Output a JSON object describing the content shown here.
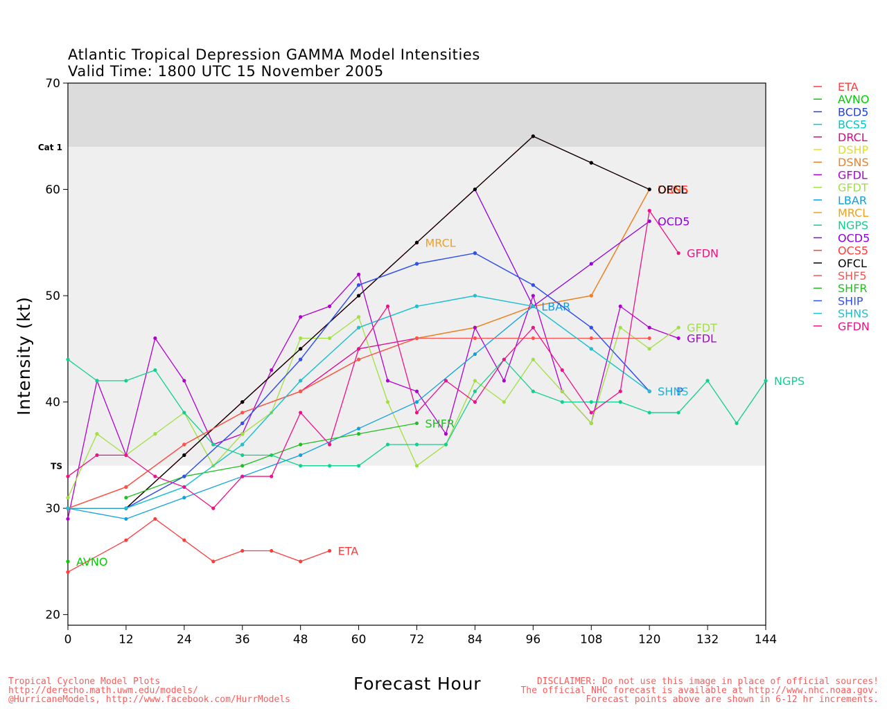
{
  "title_line1": "Atlantic Tropical Depression GAMMA Model Intensities",
  "title_line2": "Valid Time: 1800 UTC 15 November 2005",
  "footer_left": [
    "Tropical Cyclone Model Plots",
    "http://derecho.math.uwm.edu/models/",
    "@HurricaneModels, http://www.facebook.com/HurrModels"
  ],
  "footer_right": [
    "DISCLAIMER: Do not use this image in place of official sources!",
    "The official NHC forecast is available at http://www.nhc.noaa.gov.",
    "Forecast points above are shown in 6-12 hr increments."
  ],
  "chart_data": {
    "type": "line",
    "title": "Atlantic Tropical Depression GAMMA Model Intensities",
    "subtitle": "Valid Time: 1800 UTC 15 November 2005",
    "xlabel": "Forecast Hour",
    "ylabel": "Intensity (kt)",
    "xlim": [
      0,
      144
    ],
    "ylim": [
      19,
      70
    ],
    "xticks": [
      0,
      12,
      24,
      36,
      48,
      60,
      72,
      84,
      96,
      108,
      120,
      132,
      144
    ],
    "yticks": [
      20,
      30,
      40,
      50,
      60,
      70
    ],
    "bands": [
      {
        "label": "TS",
        "from": 34,
        "to": 64,
        "color": "#efefef"
      },
      {
        "label": "Cat 1",
        "from": 64,
        "to": 70,
        "color": "#dcdcdc"
      }
    ],
    "legend_position": "right",
    "series": [
      {
        "name": "ETA",
        "color": "#ff3c3c",
        "x": [
          0,
          12,
          18,
          24,
          30,
          36,
          42,
          48,
          54
        ],
        "y": [
          24,
          27,
          29,
          27,
          25,
          26,
          26,
          25,
          26
        ],
        "end_label": true
      },
      {
        "name": "AVNO",
        "color": "#00d000",
        "x": [
          0
        ],
        "y": [
          25
        ],
        "end_label": true
      },
      {
        "name": "BCD5",
        "color": "#2040e0",
        "x": [
          0,
          12,
          24,
          36,
          48,
          60,
          72,
          84,
          96,
          108,
          120
        ],
        "y": [
          30,
          30,
          33,
          38,
          44,
          51,
          53,
          54,
          51,
          47,
          41
        ],
        "end_label": false
      },
      {
        "name": "BCS5",
        "color": "#00c8c8",
        "x": [
          0,
          12,
          24,
          36,
          48,
          60,
          72,
          84,
          96,
          108,
          120
        ],
        "y": [
          30,
          30,
          32,
          36,
          42,
          47,
          49,
          50,
          49,
          45,
          41
        ],
        "end_label": false
      },
      {
        "name": "DRCL",
        "color": "#e00090",
        "x": [
          0,
          12,
          24,
          36,
          48,
          60,
          72,
          84,
          96,
          108,
          120
        ],
        "y": [
          30,
          32,
          36,
          39,
          41,
          45,
          46,
          47,
          49,
          50,
          60
        ],
        "end_label": true
      },
      {
        "name": "DSHP",
        "color": "#e0e020",
        "x": [
          0,
          12,
          24,
          36,
          48,
          60,
          72,
          84,
          96,
          108,
          120
        ],
        "y": [
          30,
          32,
          36,
          39,
          41,
          44,
          46,
          47,
          49,
          50,
          60
        ],
        "end_label": false
      },
      {
        "name": "DSNS",
        "color": "#f08020",
        "x": [
          0,
          12,
          24,
          36,
          48,
          60,
          72,
          84,
          96,
          108,
          120
        ],
        "y": [
          30,
          32,
          36,
          39,
          41,
          44,
          46,
          47,
          49,
          50,
          60
        ],
        "end_label": true
      },
      {
        "name": "GFDL",
        "color": "#b000d0",
        "x": [
          0,
          6,
          12,
          18,
          24,
          30,
          36,
          42,
          48,
          54,
          60,
          66,
          72,
          78,
          84,
          90,
          96,
          102,
          108,
          114,
          120,
          126
        ],
        "y": [
          29,
          42,
          35,
          46,
          42,
          36,
          37,
          43,
          48,
          49,
          52,
          42,
          41,
          37,
          47,
          42,
          50,
          41,
          38,
          49,
          47,
          46
        ],
        "end_label": true
      },
      {
        "name": "GFDT",
        "color": "#a0e040",
        "x": [
          0,
          6,
          12,
          18,
          24,
          30,
          36,
          42,
          48,
          54,
          60,
          66,
          72,
          78,
          84,
          90,
          96,
          102,
          108,
          114,
          120,
          126
        ],
        "y": [
          31,
          37,
          35,
          37,
          39,
          34,
          37,
          39,
          46,
          46,
          48,
          40,
          34,
          36,
          42,
          40,
          44,
          41,
          38,
          47,
          45,
          47
        ],
        "end_label": true
      },
      {
        "name": "LBAR",
        "color": "#10a0e0",
        "x": [
          0,
          12,
          24,
          36,
          48,
          60,
          72,
          84,
          96
        ],
        "y": [
          30,
          29,
          31,
          33,
          35,
          37.5,
          40,
          44.5,
          49
        ],
        "end_label": true
      },
      {
        "name": "MRCL",
        "color": "#f0a020",
        "x": [
          0,
          12,
          24,
          36,
          48,
          60,
          72
        ],
        "y": [
          30,
          30,
          35,
          40,
          45,
          50,
          55
        ],
        "end_label": true
      },
      {
        "name": "NGPS",
        "color": "#10d090",
        "x": [
          0,
          6,
          12,
          18,
          24,
          30,
          36,
          42,
          48,
          54,
          60,
          66,
          72,
          78,
          84,
          90,
          96,
          102,
          108,
          114,
          120,
          126,
          132,
          138,
          144
        ],
        "y": [
          44,
          42,
          42,
          43,
          39,
          36,
          35,
          35,
          34,
          34,
          34,
          36,
          36,
          36,
          41,
          44,
          41,
          40,
          40,
          40,
          39,
          39,
          42,
          38,
          42
        ],
        "end_label": true
      },
      {
        "name": "OCD5",
        "color": "#9000e0",
        "x": [
          0,
          12,
          24,
          36,
          48,
          60,
          72,
          84,
          96,
          108,
          120
        ],
        "y": [
          30,
          30,
          35,
          40,
          45,
          50,
          55,
          60,
          49,
          53,
          57
        ],
        "end_label": true
      },
      {
        "name": "OCS5",
        "color": "#ff3c3c",
        "x": [
          0,
          12,
          24,
          36,
          48,
          60,
          72,
          84,
          96,
          108,
          120
        ],
        "y": [
          30,
          30,
          35,
          40,
          45,
          50,
          55,
          60,
          65,
          62.5,
          60
        ],
        "end_label": true
      },
      {
        "name": "OFCL",
        "color": "#000000",
        "x": [
          0,
          12,
          24,
          36,
          48,
          60,
          72,
          84,
          96,
          108,
          120
        ],
        "y": [
          30,
          30,
          35,
          40,
          45,
          50,
          55,
          60,
          65,
          62.5,
          60
        ],
        "end_label": true
      },
      {
        "name": "SHF5",
        "color": "#ff5050",
        "x": [
          0,
          12,
          24,
          36,
          48,
          60,
          72,
          84,
          96,
          108,
          120
        ],
        "y": [
          30,
          32,
          36,
          39,
          41,
          44,
          46,
          46,
          46,
          46,
          46
        ],
        "end_label": false
      },
      {
        "name": "SHFR",
        "color": "#20c020",
        "x": [
          12,
          24,
          36,
          48,
          60,
          72
        ],
        "y": [
          31,
          33,
          34,
          36,
          37,
          38
        ],
        "end_label": true
      },
      {
        "name": "SHIP",
        "color": "#3050f0",
        "x": [
          0,
          12,
          24,
          36,
          48,
          60,
          72,
          84,
          96,
          108,
          120
        ],
        "y": [
          30,
          30,
          33,
          38,
          44,
          51,
          53,
          54,
          51,
          47,
          41
        ],
        "end_label": true
      },
      {
        "name": "SHNS",
        "color": "#20c0d0",
        "x": [
          0,
          12,
          24,
          36,
          48,
          60,
          72,
          84,
          96,
          108,
          120
        ],
        "y": [
          30,
          30,
          32,
          36,
          42,
          47,
          49,
          50,
          49,
          45,
          41
        ],
        "end_label": true
      },
      {
        "name": "GFDN",
        "color": "#f0108a",
        "x": [
          0,
          6,
          12,
          18,
          24,
          30,
          36,
          42,
          48,
          54,
          60,
          66,
          72,
          78,
          84,
          90,
          96,
          102,
          108,
          114,
          120,
          126
        ],
        "y": [
          33,
          35,
          35,
          33,
          32,
          30,
          33,
          33,
          39,
          36,
          45,
          49,
          39,
          42,
          40,
          44,
          47,
          43,
          39,
          41,
          58,
          54
        ],
        "end_label": true
      }
    ]
  }
}
